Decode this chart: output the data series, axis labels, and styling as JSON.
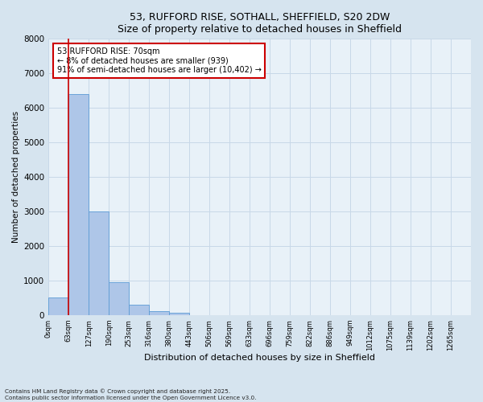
{
  "title_line1": "53, RUFFORD RISE, SOTHALL, SHEFFIELD, S20 2DW",
  "title_line2": "Size of property relative to detached houses in Sheffield",
  "xlabel": "Distribution of detached houses by size in Sheffield",
  "ylabel": "Number of detached properties",
  "bin_labels": [
    "0sqm",
    "63sqm",
    "127sqm",
    "190sqm",
    "253sqm",
    "316sqm",
    "380sqm",
    "443sqm",
    "506sqm",
    "569sqm",
    "633sqm",
    "696sqm",
    "759sqm",
    "822sqm",
    "886sqm",
    "949sqm",
    "1012sqm",
    "1075sqm",
    "1139sqm",
    "1202sqm",
    "1265sqm"
  ],
  "bar_heights": [
    500,
    6400,
    3000,
    950,
    300,
    120,
    70,
    0,
    0,
    0,
    0,
    0,
    0,
    0,
    0,
    0,
    0,
    0,
    0,
    0,
    0
  ],
  "bar_color": "#aec6e8",
  "bar_edge_color": "#5b9bd5",
  "property_line_x": 1,
  "annotation_text": "53 RUFFORD RISE: 70sqm\n← 8% of detached houses are smaller (939)\n91% of semi-detached houses are larger (10,402) →",
  "annotation_box_color": "#ffffff",
  "annotation_box_edge": "#cc0000",
  "property_line_color": "#cc0000",
  "ylim": [
    0,
    8000
  ],
  "yticks": [
    0,
    1000,
    2000,
    3000,
    4000,
    5000,
    6000,
    7000,
    8000
  ],
  "grid_color": "#c8d8e8",
  "background_color": "#d6e4ef",
  "plot_bg_color": "#e8f1f8",
  "footer_line1": "Contains HM Land Registry data © Crown copyright and database right 2025.",
  "footer_line2": "Contains public sector information licensed under the Open Government Licence v3.0."
}
